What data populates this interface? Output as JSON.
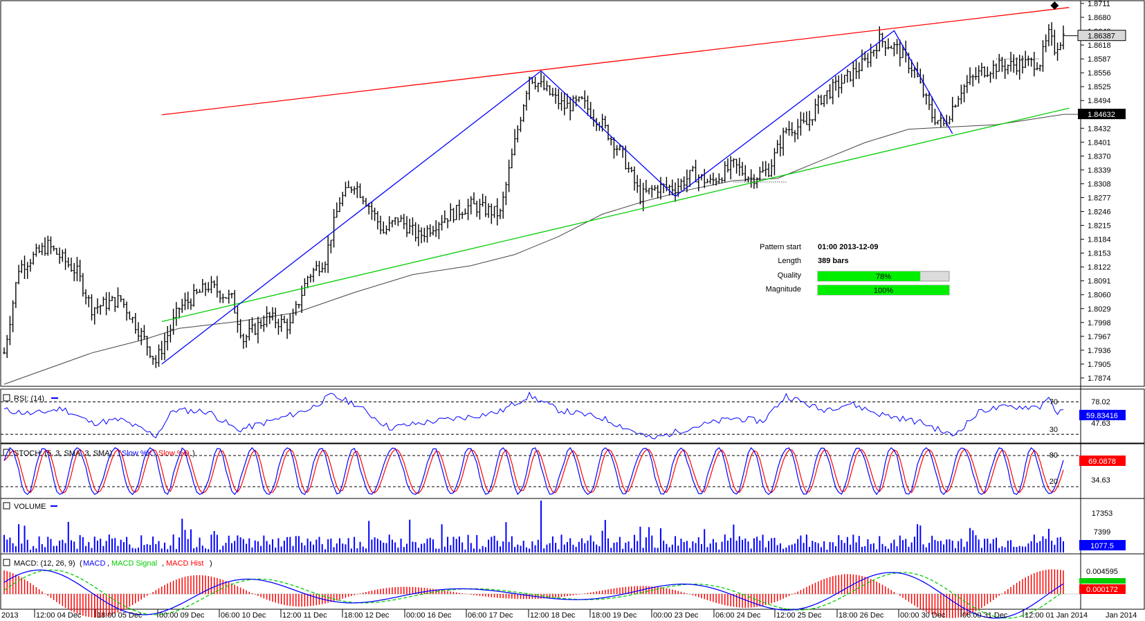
{
  "chart_data": [
    {
      "type": "candlestick",
      "panel": "price",
      "y_ticks": [
        "1.8711",
        "1.8680",
        "1.8649",
        "1.8618",
        "1.8587",
        "1.8556",
        "1.8525",
        "1.8494",
        "1.8463",
        "1.8432",
        "1.8401",
        "1.8370",
        "1.8339",
        "1.8308",
        "1.8277",
        "1.8246",
        "1.8215",
        "1.8184",
        "1.8153",
        "1.8122",
        "1.8091",
        "1.8060",
        "1.8029",
        "1.7998",
        "1.7967",
        "1.7936",
        "1.7905",
        "1.7874"
      ],
      "ylim": [
        1.786,
        1.8714
      ],
      "x_ticks": [
        "2013",
        "12:00 04 Dec",
        "18:00 05 Dec",
        "00:00 09 Dec",
        "06:00 10 Dec",
        "12:00 11 Dec",
        "18:00 12 Dec",
        "00:00 16 Dec",
        "06:00 17 Dec",
        "12:00 18 Dec",
        "18:00 19 Dec",
        "00:00 23 Dec",
        "06:00 24 Dec",
        "12:00 25 Dec",
        "18:00 26 Dec",
        "00:00 30 Dec",
        "06:00 31 Dec",
        "12:00 01 Jan 2014",
        "Jan 2014"
      ],
      "current_price": "1.86387",
      "ma_value": "1.84632",
      "close_path": [
        [
          0,
          1.793
        ],
        [
          5,
          1.812
        ],
        [
          15,
          1.817
        ],
        [
          25,
          1.811
        ],
        [
          30,
          1.803
        ],
        [
          40,
          1.805
        ],
        [
          48,
          1.796
        ],
        [
          52,
          1.791
        ],
        [
          60,
          1.803
        ],
        [
          70,
          1.808
        ],
        [
          78,
          1.805
        ],
        [
          82,
          1.796
        ],
        [
          90,
          1.801
        ],
        [
          98,
          1.799
        ],
        [
          104,
          1.81
        ],
        [
          110,
          1.814
        ],
        [
          115,
          1.827
        ],
        [
          120,
          1.831
        ],
        [
          125,
          1.826
        ],
        [
          130,
          1.82
        ],
        [
          135,
          1.823
        ],
        [
          142,
          1.819
        ],
        [
          150,
          1.823
        ],
        [
          160,
          1.826
        ],
        [
          170,
          1.824
        ],
        [
          175,
          1.84
        ],
        [
          180,
          1.855
        ],
        [
          185,
          1.852
        ],
        [
          192,
          1.848
        ],
        [
          198,
          1.849
        ],
        [
          205,
          1.844
        ],
        [
          212,
          1.837
        ],
        [
          218,
          1.828
        ],
        [
          224,
          1.83
        ],
        [
          230,
          1.83
        ],
        [
          236,
          1.833
        ],
        [
          242,
          1.831
        ],
        [
          250,
          1.835
        ],
        [
          256,
          1.832
        ],
        [
          262,
          1.834
        ],
        [
          268,
          1.843
        ],
        [
          275,
          1.844
        ],
        [
          280,
          1.85
        ],
        [
          288,
          1.854
        ],
        [
          295,
          1.858
        ],
        [
          300,
          1.863
        ],
        [
          306,
          1.861
        ],
        [
          312,
          1.856
        ],
        [
          318,
          1.846
        ],
        [
          322,
          1.844
        ],
        [
          328,
          1.852
        ],
        [
          335,
          1.856
        ],
        [
          340,
          1.857
        ],
        [
          355,
          1.858
        ],
        [
          358,
          1.864
        ],
        [
          360,
          1.861
        ],
        [
          363,
          1.8639
        ]
      ],
      "moving_average": [
        [
          0,
          1.786
        ],
        [
          30,
          1.793
        ],
        [
          48,
          1.796
        ],
        [
          60,
          1.7985
        ],
        [
          80,
          1.8
        ],
        [
          100,
          1.802
        ],
        [
          120,
          1.8065
        ],
        [
          140,
          1.8105
        ],
        [
          160,
          1.8125
        ],
        [
          175,
          1.815
        ],
        [
          190,
          1.819
        ],
        [
          205,
          1.824
        ],
        [
          220,
          1.827
        ],
        [
          235,
          1.8295
        ],
        [
          250,
          1.8315
        ],
        [
          265,
          1.832
        ],
        [
          280,
          1.836
        ],
        [
          295,
          1.84
        ],
        [
          310,
          1.843
        ],
        [
          325,
          1.8435
        ],
        [
          340,
          1.844
        ],
        [
          355,
          1.8455
        ],
        [
          363,
          1.8463
        ]
      ],
      "pattern_lines": {
        "resistance": {
          "color": "#ff0000",
          "points": [
            [
              54,
              1.8462
            ],
            [
              365,
              1.8702
            ]
          ]
        },
        "support": {
          "color": "#00cc00",
          "points": [
            [
              54,
              1.8
            ],
            [
              365,
              1.8477
            ]
          ]
        },
        "zigzag": {
          "color": "#0000ff",
          "points": [
            [
              54,
              1.7905
            ],
            [
              184,
              1.856
            ],
            [
              230,
              1.828
            ],
            [
              305,
              1.865
            ],
            [
              325,
              1.842
            ]
          ]
        }
      },
      "pattern_info": {
        "start_label": "Pattern start",
        "start_value": "01:00 2013-12-09",
        "length_label": "Length",
        "length_value": "389 bars",
        "quality_label": "Quality",
        "quality_value": "78%",
        "quality": 0.78,
        "magnitude_label": "Magnitude",
        "magnitude_value": "100%",
        "magnitude": 1.0
      }
    },
    {
      "type": "line",
      "panel": "rsi",
      "title": "RSI: (14)",
      "levels": [
        "70",
        "30"
      ],
      "y_ticks": [
        "78.02",
        "47.63"
      ],
      "current": "59.83416",
      "ylim": [
        20,
        85
      ],
      "path": [
        [
          0,
          60
        ],
        [
          10,
          55
        ],
        [
          20,
          62
        ],
        [
          30,
          44
        ],
        [
          40,
          48
        ],
        [
          52,
          28
        ],
        [
          58,
          60
        ],
        [
          70,
          58
        ],
        [
          80,
          35
        ],
        [
          95,
          50
        ],
        [
          105,
          62
        ],
        [
          112,
          78
        ],
        [
          120,
          68
        ],
        [
          132,
          38
        ],
        [
          145,
          45
        ],
        [
          160,
          52
        ],
        [
          170,
          58
        ],
        [
          180,
          78
        ],
        [
          190,
          60
        ],
        [
          205,
          50
        ],
        [
          215,
          35
        ],
        [
          222,
          24
        ],
        [
          235,
          38
        ],
        [
          250,
          50
        ],
        [
          260,
          46
        ],
        [
          268,
          78
        ],
        [
          280,
          60
        ],
        [
          290,
          68
        ],
        [
          300,
          55
        ],
        [
          315,
          44
        ],
        [
          325,
          28
        ],
        [
          335,
          60
        ],
        [
          345,
          64
        ],
        [
          355,
          64
        ],
        [
          358,
          78
        ],
        [
          360,
          56
        ],
        [
          363,
          58
        ]
      ]
    },
    {
      "type": "line",
      "panel": "stoch",
      "title": "STOCH: (5, 3, SMA, 3, SMA)",
      "series": [
        {
          "name": "Slow %K",
          "color": "#0000ff"
        },
        {
          "name": "Slow %D",
          "color": "#ff0000"
        }
      ],
      "levels": [
        "80",
        "20"
      ],
      "y_ticks": [
        "34.63"
      ],
      "current": "69.0878",
      "ylim": [
        0,
        100
      ]
    },
    {
      "type": "bar",
      "panel": "volume",
      "title": "VOLUME",
      "y_ticks": [
        "17353",
        "7399"
      ],
      "current": "1077.5",
      "ylim": [
        0,
        24000
      ]
    },
    {
      "type": "line",
      "panel": "macd",
      "title": "MACD: (12, 26, 9)",
      "series": [
        {
          "name": "MACD",
          "color": "#0000ff"
        },
        {
          "name": "MACD Signal",
          "color": "#00cc00"
        },
        {
          "name": "MACD Hist",
          "color": "#ff0000"
        }
      ],
      "y_ticks": [
        "0.004595"
      ],
      "current": "0.000172",
      "ylim": [
        -0.0055,
        0.006
      ]
    }
  ],
  "colors": {
    "up": "#000000",
    "accent_price": "#000000",
    "label_bg": "#000000"
  }
}
